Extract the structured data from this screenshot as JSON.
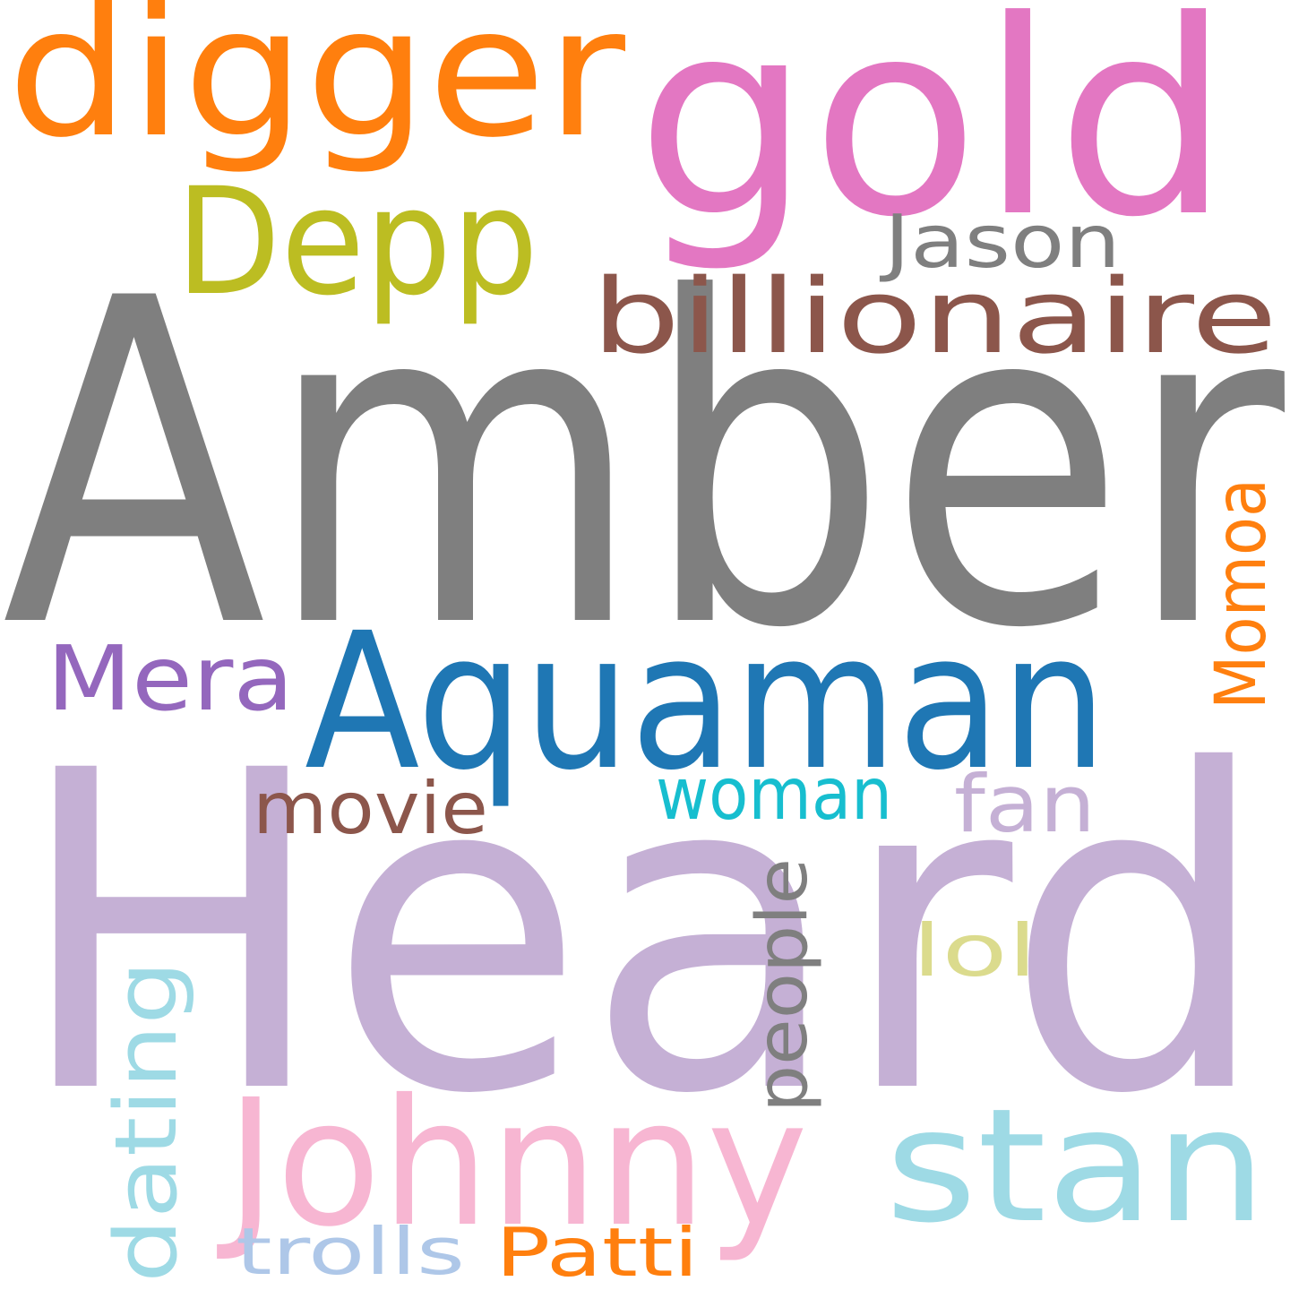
{
  "words": [
    {
      "key": "amber",
      "text": "Amber",
      "color": "#7f7f7f"
    },
    {
      "key": "heard",
      "text": "Heard",
      "color": "#c5b0d5"
    },
    {
      "key": "gold",
      "text": "gold",
      "color": "#e377c2"
    },
    {
      "key": "digger",
      "text": "digger",
      "color": "#ff7f0e"
    },
    {
      "key": "aquaman",
      "text": "Aquaman",
      "color": "#1f77b4"
    },
    {
      "key": "depp",
      "text": "Depp",
      "color": "#bcbd22"
    },
    {
      "key": "billionaire",
      "text": "billionaire",
      "color": "#8c564b"
    },
    {
      "key": "johnny",
      "text": "Johnny",
      "color": "#f7b6d2"
    },
    {
      "key": "stan",
      "text": "stan",
      "color": "#9edae5"
    },
    {
      "key": "jason",
      "text": "Jason",
      "color": "#7f7f7f"
    },
    {
      "key": "mera",
      "text": "Mera",
      "color": "#9467bd"
    },
    {
      "key": "momoa",
      "text": "Momoa",
      "color": "#ff7f0e"
    },
    {
      "key": "movie",
      "text": "movie",
      "color": "#8c564b"
    },
    {
      "key": "woman",
      "text": "woman",
      "color": "#17becf"
    },
    {
      "key": "fan",
      "text": "fan",
      "color": "#c5b0d5"
    },
    {
      "key": "people",
      "text": "people",
      "color": "#7f7f7f"
    },
    {
      "key": "lol",
      "text": "lol",
      "color": "#dbdb8d"
    },
    {
      "key": "dating",
      "text": "dating",
      "color": "#9edae5"
    },
    {
      "key": "trolls",
      "text": "trolls",
      "color": "#aec7e8"
    },
    {
      "key": "patti",
      "text": "Patti",
      "color": "#ff7f0e"
    }
  ]
}
